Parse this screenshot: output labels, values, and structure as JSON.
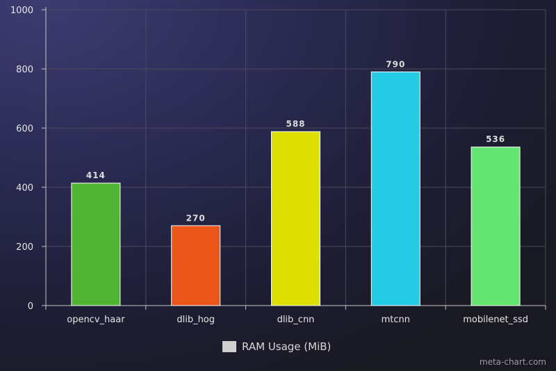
{
  "chart_data": {
    "type": "bar",
    "categories": [
      "opencv_haar",
      "dlib_hog",
      "dlib_cnn",
      "mtcnn",
      "mobilenet_ssd"
    ],
    "series": [
      {
        "name": "RAM Usage (MiB)",
        "values": [
          414,
          270,
          588,
          790,
          536
        ],
        "colors": [
          "#50b432",
          "#ed561b",
          "#dddf00",
          "#24cbe5",
          "#64e572"
        ]
      }
    ],
    "ylim": [
      0,
      1000
    ],
    "yticks": [
      "0",
      "200",
      "400",
      "600",
      "800",
      "1000"
    ],
    "grid": true,
    "legend_position": "bottom-center",
    "title": "",
    "xlabel": "",
    "ylabel": ""
  },
  "legend": {
    "label": "RAM Usage (MiB)",
    "swatch_color": "#cfcfcf"
  },
  "watermark": "meta-chart.com"
}
